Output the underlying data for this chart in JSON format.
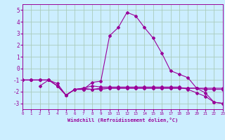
{
  "xlabel": "Windchill (Refroidissement éolien,°C)",
  "bg_color": "#cceeff",
  "grid_color": "#aaccbb",
  "line_color": "#990099",
  "xlim": [
    0,
    23
  ],
  "ylim": [
    -3.5,
    5.5
  ],
  "xticks": [
    0,
    1,
    2,
    3,
    4,
    5,
    6,
    7,
    8,
    9,
    10,
    11,
    12,
    13,
    14,
    15,
    16,
    17,
    18,
    19,
    20,
    21,
    22,
    23
  ],
  "yticks": [
    -3,
    -2,
    -1,
    0,
    1,
    2,
    3,
    4,
    5
  ],
  "line1_x": [
    0,
    1,
    2,
    3,
    4,
    5,
    6,
    7,
    8,
    9,
    10,
    11,
    12,
    13,
    14,
    15,
    16,
    17,
    18,
    19,
    20,
    21,
    22,
    23
  ],
  "line1_y": [
    -1.0,
    -1.0,
    -1.0,
    -1.0,
    -1.3,
    -2.3,
    -1.8,
    -1.8,
    -1.8,
    -1.7,
    -1.7,
    -1.7,
    -1.7,
    -1.7,
    -1.7,
    -1.7,
    -1.7,
    -1.7,
    -1.7,
    -1.7,
    -1.7,
    -1.7,
    -1.7,
    -1.7
  ],
  "line2_x": [
    0,
    1,
    2,
    3,
    4,
    5,
    6,
    7,
    8,
    9,
    10,
    11,
    12,
    13,
    14,
    15,
    16,
    17,
    18,
    19,
    20,
    21,
    22,
    23
  ],
  "line2_y": [
    -1.0,
    -1.0,
    -1.0,
    -1.0,
    -1.5,
    -2.3,
    -1.8,
    -1.7,
    -1.8,
    -1.8,
    -1.7,
    -1.7,
    -1.7,
    -1.7,
    -1.7,
    -1.7,
    -1.7,
    -1.7,
    -1.7,
    -1.7,
    -1.7,
    -1.8,
    -1.8,
    -1.8
  ],
  "line3_x": [
    2,
    3,
    4,
    5,
    6,
    7,
    8,
    9,
    10,
    11,
    12,
    13,
    14,
    15,
    16,
    17,
    18,
    19,
    20,
    21,
    22,
    23
  ],
  "line3_y": [
    -1.5,
    -1.0,
    -1.5,
    -2.3,
    -1.8,
    -1.8,
    -1.2,
    -1.1,
    2.8,
    3.5,
    4.8,
    4.5,
    3.5,
    2.6,
    1.3,
    -0.2,
    -0.5,
    -0.8,
    -1.7,
    -2.1,
    -2.9,
    -3.0
  ],
  "line4_x": [
    0,
    1,
    2,
    3,
    4,
    5,
    6,
    7,
    8,
    9,
    10,
    11,
    12,
    13,
    14,
    15,
    16,
    17,
    18,
    19,
    20,
    21,
    22,
    23
  ],
  "line4_y": [
    -1.0,
    -1.0,
    -1.0,
    -1.0,
    -1.5,
    -2.3,
    -1.8,
    -1.7,
    -1.5,
    -1.6,
    -1.6,
    -1.6,
    -1.6,
    -1.6,
    -1.6,
    -1.6,
    -1.6,
    -1.6,
    -1.6,
    -1.8,
    -2.1,
    -2.4,
    -2.9,
    -3.0
  ]
}
